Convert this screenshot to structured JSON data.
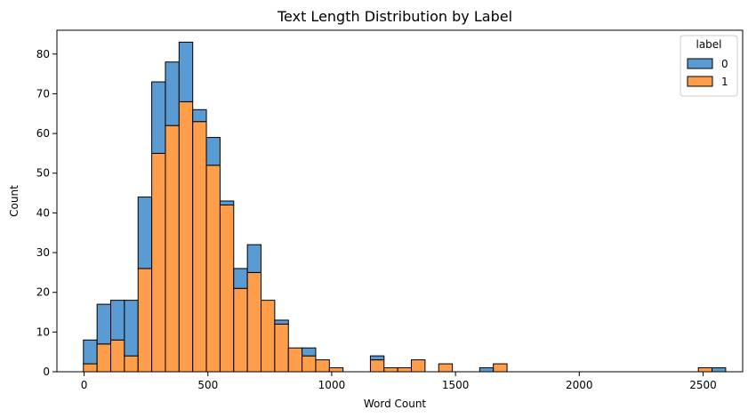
{
  "chart_data": {
    "type": "bar",
    "title": "Text Length Distribution by Label",
    "xlabel": "Word Count",
    "ylabel": "Count",
    "xlim": [
      -110,
      2660
    ],
    "ylim": [
      0,
      86
    ],
    "bin_start": -3,
    "bin_width": 55.2,
    "x_ticks": [
      0,
      500,
      1000,
      1500,
      2000,
      2500
    ],
    "y_ticks": [
      0,
      10,
      20,
      30,
      40,
      50,
      60,
      70,
      80
    ],
    "stacked": true,
    "legend": {
      "title": "label",
      "position": "top-right"
    },
    "series": [
      {
        "name": "1",
        "color": "#ff9e4a",
        "values": [
          2,
          7,
          8,
          4,
          26,
          55,
          62,
          68,
          63,
          52,
          42,
          21,
          25,
          18,
          12,
          6,
          4,
          3,
          1,
          0,
          0,
          3,
          1,
          1,
          3,
          0,
          2,
          0,
          0,
          0,
          2,
          0,
          0,
          0,
          0,
          0,
          0,
          0,
          0,
          0,
          0,
          0,
          0,
          0,
          0,
          1,
          0
        ]
      },
      {
        "name": "0",
        "color": "#5a9bd4",
        "values": [
          6,
          10,
          10,
          14,
          18,
          18,
          16,
          15,
          3,
          7,
          1,
          5,
          7,
          0,
          1,
          0,
          2,
          0,
          0,
          0,
          0,
          1,
          0,
          0,
          0,
          0,
          0,
          0,
          0,
          1,
          0,
          0,
          0,
          0,
          0,
          0,
          0,
          0,
          0,
          0,
          0,
          0,
          0,
          0,
          0,
          0,
          1
        ]
      }
    ]
  }
}
